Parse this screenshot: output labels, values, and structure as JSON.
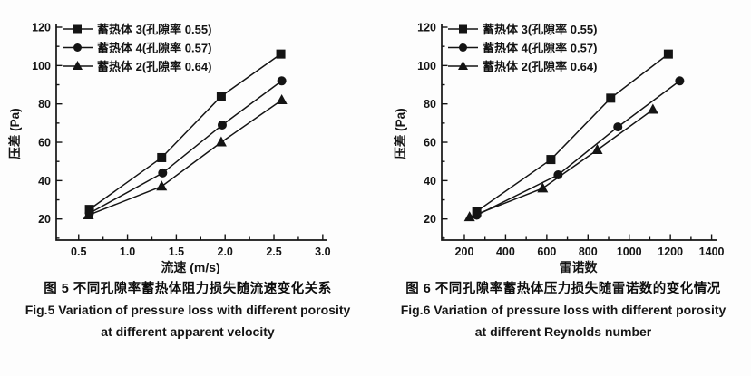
{
  "figures": [
    {
      "caption_cn": "图 5 不同孔隙率蓄热体阻力损失随流速变化关系",
      "caption_en1": "Fig.5 Variation of pressure loss with different porosity",
      "caption_en2": "at different apparent velocity"
    },
    {
      "caption_cn": "图 6 不同孔隙率蓄热体压力损失随雷诺数的变化情况",
      "caption_en1": "Fig.6 Variation of pressure loss with different porosity",
      "caption_en2": "at different Reynolds number"
    }
  ],
  "chart_data": [
    {
      "type": "line",
      "title": "",
      "xlabel": "流速 (m/s)",
      "ylabel": "压差 (Pa)",
      "xlim": [
        0.27,
        3.02
      ],
      "ylim": [
        9,
        120
      ],
      "xticks": [
        0.5,
        1.0,
        1.5,
        2.0,
        2.5,
        3.0
      ],
      "xtick_labels": [
        "0.5",
        "1.0",
        "1.5",
        "2.0",
        "2.5",
        "3.0"
      ],
      "yticks": [
        20,
        40,
        60,
        80,
        100,
        120
      ],
      "x_minor_step": 0.25,
      "y_minor_step": 10,
      "grid": false,
      "legend_position": "top-left-inside",
      "line_color": "#141414",
      "series": [
        {
          "name": "蓄热体 3(孔隙率 0.55)",
          "marker": "square",
          "x": [
            0.61,
            1.35,
            1.96,
            2.57
          ],
          "y": [
            25,
            52,
            84,
            106
          ]
        },
        {
          "name": "蓄热体 4(孔隙率 0.57)",
          "marker": "circle",
          "x": [
            0.61,
            1.36,
            1.97,
            2.58
          ],
          "y": [
            23,
            44,
            69,
            92
          ]
        },
        {
          "name": "蓄热体 2(孔隙率 0.64)",
          "marker": "triangle",
          "x": [
            0.6,
            1.35,
            1.96,
            2.58
          ],
          "y": [
            22,
            37,
            60,
            82
          ]
        }
      ]
    },
    {
      "type": "line",
      "title": "",
      "xlabel": "雷诺数",
      "ylabel": "压差 (Pa)",
      "xlim": [
        90,
        1415
      ],
      "ylim": [
        9,
        120
      ],
      "xticks": [
        200,
        400,
        600,
        800,
        1000,
        1200,
        1400
      ],
      "xtick_labels": [
        "200",
        "400",
        "600",
        "800",
        "1000",
        "1200",
        "1400"
      ],
      "yticks": [
        20,
        40,
        60,
        80,
        100,
        120
      ],
      "x_minor_step": 100,
      "y_minor_step": 10,
      "grid": false,
      "legend_position": "top-left-inside",
      "line_color": "#141414",
      "series": [
        {
          "name": "蓄热体 3(孔隙率 0.55)",
          "marker": "square",
          "x": [
            260,
            620,
            910,
            1190
          ],
          "y": [
            24,
            51,
            83,
            106
          ]
        },
        {
          "name": "蓄热体 4(孔隙率 0.57)",
          "marker": "circle",
          "x": [
            260,
            655,
            945,
            1245
          ],
          "y": [
            22,
            43,
            68,
            92
          ]
        },
        {
          "name": "蓄热体 2(孔隙率 0.64)",
          "marker": "triangle",
          "x": [
            225,
            580,
            845,
            1115
          ],
          "y": [
            21,
            36,
            56,
            77
          ]
        }
      ]
    }
  ]
}
